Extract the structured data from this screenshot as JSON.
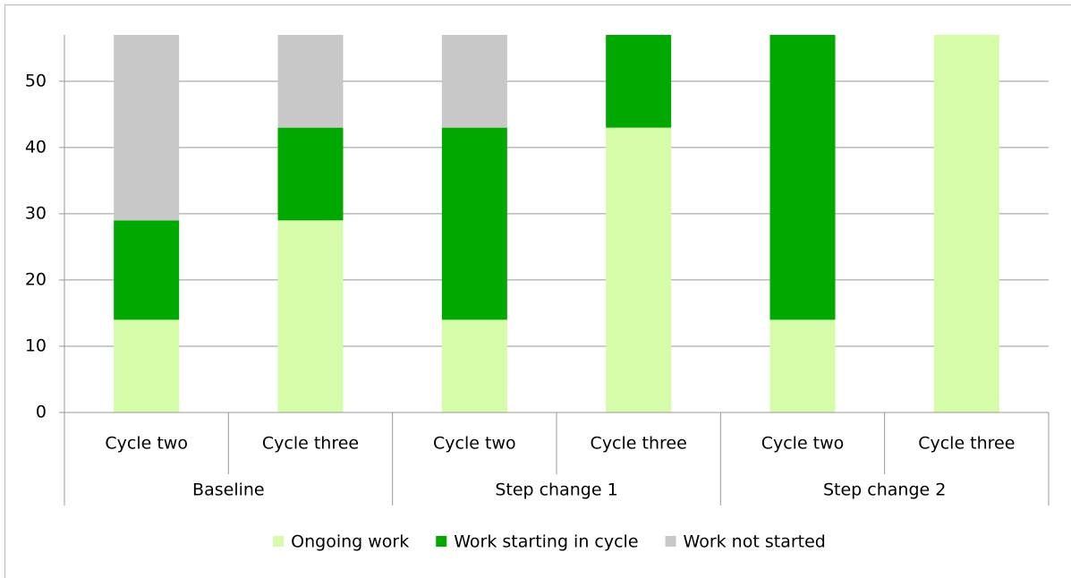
{
  "chart_data": {
    "type": "stacked-bar",
    "categories": [
      "Cycle two",
      "Cycle three",
      "Cycle two",
      "Cycle three",
      "Cycle two",
      "Cycle three"
    ],
    "groups": [
      "Baseline",
      "Step change 1",
      "Step change 2"
    ],
    "series": [
      {
        "name": "Ongoing work",
        "color": "#d5fca8",
        "values": [
          14,
          29,
          14,
          43,
          14,
          57
        ]
      },
      {
        "name": "Work starting in cycle",
        "color": "#00a800",
        "values": [
          15,
          14,
          29,
          14,
          43,
          0
        ]
      },
      {
        "name": "Work not started",
        "color": "#c8c8c8",
        "values": [
          28,
          14,
          14,
          0,
          0,
          0
        ]
      }
    ],
    "ylim": [
      0,
      57
    ],
    "yticks": [
      0,
      10,
      20,
      30,
      40,
      50
    ],
    "grid": true,
    "legend": "bottom"
  }
}
